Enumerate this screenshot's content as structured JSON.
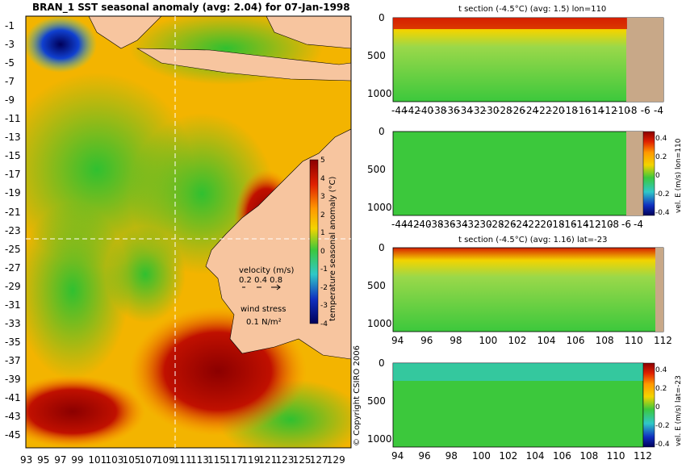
{
  "colors": {
    "land": "#f7c59f",
    "land_section": "#c8a888",
    "dark_red": "#8b0000",
    "red": "#d62000",
    "orange": "#ff9900",
    "yellow": "#f3d400",
    "green": "#3cc83c",
    "light_green": "#9ad84a",
    "cyan": "#30c8c8",
    "blue": "#1030c0",
    "navy": "#00005a",
    "vector": "#ff00ff"
  },
  "chart_data": [
    {
      "type": "heatmap",
      "title": "BRAN_1 SST seasonal anomaly (avg: 2.04) for 07-Jan-1998",
      "x_ticks": [
        "93",
        "95",
        "97",
        "99",
        "101",
        "103",
        "105",
        "107",
        "109",
        "111",
        "113",
        "115",
        "117",
        "119",
        "121",
        "123",
        "125",
        "127",
        "129"
      ],
      "y_ticks": [
        "-1",
        "-3",
        "-5",
        "-7",
        "-9",
        "-11",
        "-13",
        "-15",
        "-17",
        "-19",
        "-21",
        "-23",
        "-25",
        "-27",
        "-29",
        "-31",
        "-33",
        "-35",
        "-37",
        "-39",
        "-41",
        "-43",
        "-45"
      ],
      "colorbar": {
        "label": "temperature seasonal anomaly (°C)",
        "ticks": [
          "5",
          "4",
          "3",
          "2",
          "1",
          "0",
          "-1",
          "-2",
          "-3",
          "-4"
        ],
        "range": [
          -4,
          5
        ]
      },
      "legend": {
        "velocity_title": "velocity (m/s)",
        "velocity_values": "0.2 0.4 0.8",
        "wind_title": "wind stress",
        "wind_value": "0.1 N/m²"
      },
      "section_lines": {
        "lon": 110,
        "lat": -23
      },
      "copyright": "© Copyright CSIRO 2006"
    },
    {
      "type": "heatmap",
      "title": "t section (-4.5°C) (avg: 1.5) lon=110",
      "x_ticks": [
        "-44",
        "-42",
        "-40",
        "-38",
        "-36",
        "-34",
        "-32",
        "-30",
        "-28",
        "-26",
        "-24",
        "-22",
        "-20",
        "-18",
        "-16",
        "-14",
        "-12",
        "-10",
        "-8",
        "-6",
        "-4"
      ],
      "y_ticks": [
        "0",
        "500",
        "1000"
      ]
    },
    {
      "type": "heatmap",
      "title": "",
      "x_ticks": [
        "-44",
        "-42",
        "-40",
        "-38",
        "-36",
        "-34",
        "-32",
        "-30",
        "-28",
        "-26",
        "-24",
        "-22",
        "-20",
        "-18",
        "-16",
        "-14",
        "-12",
        "-10",
        "-8",
        "-6",
        "-4"
      ],
      "y_ticks": [
        "0",
        "500",
        "1000"
      ],
      "colorbar": {
        "label": "vel. E (m/s) lon=110",
        "ticks": [
          "0.4",
          "0.2",
          "0",
          "-0.2",
          "-0.4"
        ],
        "range": [
          -0.4,
          0.4
        ]
      }
    },
    {
      "type": "heatmap",
      "title": "t section (-4.5°C) (avg: 1.16) lat=-23",
      "x_ticks": [
        "94",
        "96",
        "98",
        "100",
        "102",
        "104",
        "106",
        "108",
        "110",
        "112"
      ],
      "y_ticks": [
        "0",
        "500",
        "1000"
      ]
    },
    {
      "type": "heatmap",
      "title": "",
      "x_ticks": [
        "94",
        "96",
        "98",
        "100",
        "102",
        "104",
        "106",
        "108",
        "110",
        "112"
      ],
      "y_ticks": [
        "0",
        "500",
        "1000"
      ],
      "colorbar": {
        "label": "vel. E (m/s) lat=-23",
        "ticks": [
          "0.4",
          "0.2",
          "0",
          "-0.2",
          "-0.4"
        ],
        "range": [
          -0.4,
          0.4
        ]
      }
    }
  ]
}
